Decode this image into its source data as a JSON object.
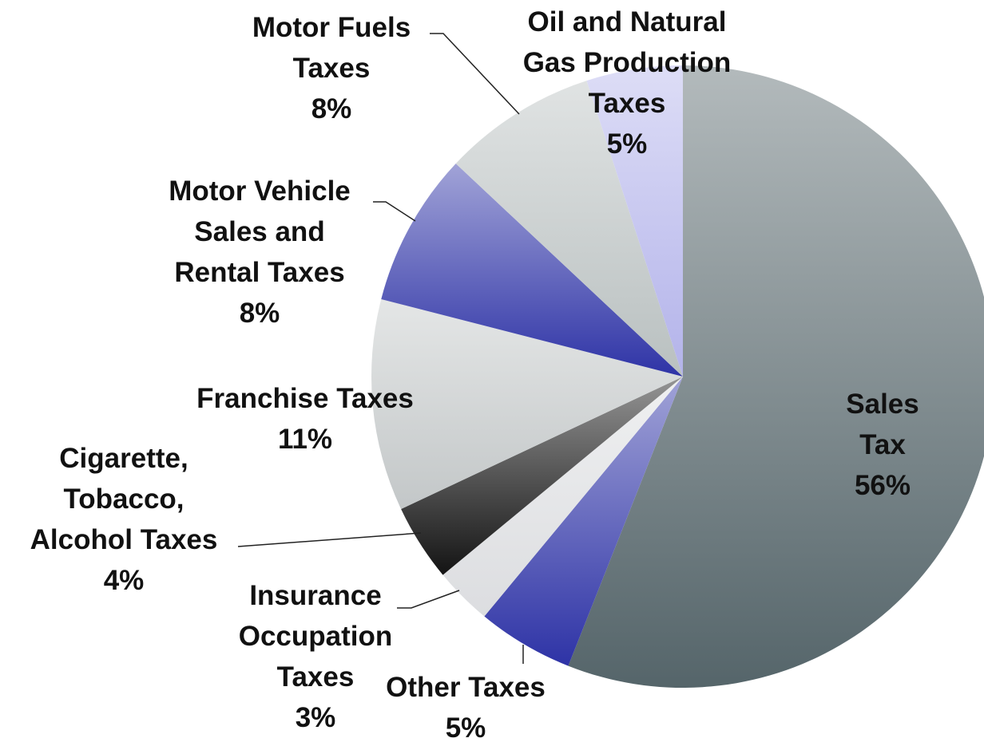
{
  "chart_data": {
    "type": "pie",
    "labels": [
      "Sales Tax",
      "Other Taxes",
      "Insurance\nOccupation\nTaxes",
      "Cigarette,\nTobacco,\nAlcohol Taxes",
      "Franchise Taxes",
      "Motor Vehicle\nSales and\nRental Taxes",
      "Motor Fuels\nTaxes",
      "Oil and Natural\nGas Production\nTaxes"
    ],
    "values": [
      56,
      5,
      3,
      4,
      11,
      8,
      8,
      5
    ],
    "value_labels": [
      "56%",
      "5%",
      "3%",
      "4%",
      "11%",
      "8%",
      "8%",
      "5%"
    ],
    "colors": [
      "#55656a",
      "#2e33a6",
      "#dcdde0",
      "#141414",
      "#c3c7c8",
      "#2e33a6",
      "#b9c0c0",
      "#b3b3ea"
    ]
  }
}
